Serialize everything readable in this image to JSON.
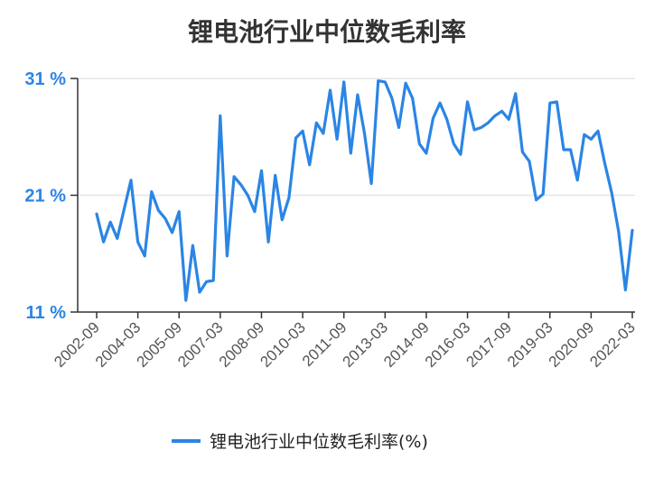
{
  "chart_data": {
    "type": "line",
    "title": "锂电池行业中位数毛利率",
    "xlabel": "",
    "ylabel": "",
    "ylim": [
      11,
      31
    ],
    "yticks": [
      "31 %",
      "21 %",
      "11 %"
    ],
    "ytick_values": [
      31,
      21,
      11
    ],
    "xticks": [
      "2002-09",
      "2004-03",
      "2005-09",
      "2007-03",
      "2008-09",
      "2010-03",
      "2011-09",
      "2013-03",
      "2014-09",
      "2016-03",
      "2017-09",
      "2019-03",
      "2020-09",
      "2022-03"
    ],
    "grid": "horizontal",
    "legend_position": "bottom-center",
    "colors": {
      "series": "#2b85e4",
      "axis": "#333333",
      "grid": "#e6e6e6"
    },
    "series": [
      {
        "name": "锂电池行业中位数毛利率(%)",
        "values": [
          19.4,
          17.0,
          18.7,
          17.3,
          19.8,
          22.3,
          17.0,
          15.8,
          21.3,
          19.7,
          19.0,
          17.8,
          19.6,
          12.0,
          16.7,
          12.7,
          13.6,
          13.7,
          27.8,
          15.8,
          22.6,
          21.9,
          21.0,
          19.6,
          23.1,
          17.0,
          22.7,
          18.9,
          20.8,
          25.9,
          26.5,
          23.6,
          27.2,
          26.3,
          30.0,
          25.8,
          30.7,
          24.6,
          29.6,
          26.3,
          22.0,
          30.8,
          30.7,
          29.3,
          26.8,
          30.6,
          29.3,
          25.4,
          24.6,
          27.6,
          28.9,
          27.5,
          25.4,
          24.5,
          29.0,
          26.6,
          26.8,
          27.2,
          27.8,
          28.2,
          27.5,
          29.7,
          24.7,
          23.9,
          20.6,
          21.1,
          28.9,
          29.0,
          24.9,
          24.9,
          22.3,
          26.2,
          25.8,
          26.5,
          23.7,
          21.2,
          17.9,
          12.9,
          18.0
        ]
      }
    ]
  }
}
